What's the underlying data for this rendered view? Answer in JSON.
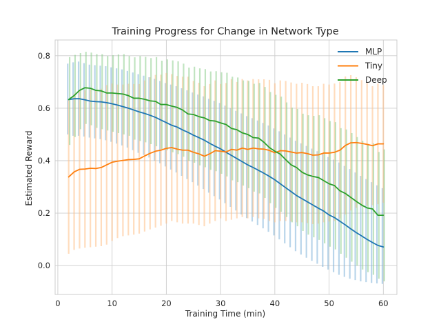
{
  "chart_data": {
    "type": "line",
    "title": "Training Progress for Change in Network Type",
    "xlabel": "Training Time (min)",
    "ylabel": "Estimated Reward",
    "xlim": [
      -0.5,
      62.5
    ],
    "ylim": [
      -0.11,
      0.86
    ],
    "xticks": [
      0,
      10,
      20,
      30,
      40,
      50,
      60
    ],
    "yticks": [
      0.0,
      0.2,
      0.4,
      0.6,
      0.8
    ],
    "grid": true,
    "legend_position": "top-right",
    "x": [
      2,
      3,
      4,
      5,
      6,
      7,
      8,
      9,
      10,
      11,
      12,
      13,
      14,
      15,
      16,
      17,
      18,
      19,
      20,
      21,
      22,
      23,
      24,
      25,
      26,
      27,
      28,
      29,
      30,
      31,
      32,
      33,
      34,
      35,
      36,
      37,
      38,
      39,
      40,
      41,
      42,
      43,
      44,
      45,
      46,
      47,
      48,
      49,
      50,
      51,
      52,
      53,
      54,
      55,
      56,
      57,
      58,
      59,
      60
    ],
    "series": [
      {
        "name": "MLP",
        "color": "#1f77b4",
        "band_color": "#7fb3d9",
        "values": [
          0.633,
          0.636,
          0.636,
          0.632,
          0.627,
          0.625,
          0.624,
          0.621,
          0.617,
          0.612,
          0.606,
          0.6,
          0.593,
          0.586,
          0.58,
          0.573,
          0.565,
          0.555,
          0.545,
          0.535,
          0.528,
          0.517,
          0.508,
          0.497,
          0.488,
          0.478,
          0.466,
          0.455,
          0.445,
          0.432,
          0.42,
          0.408,
          0.396,
          0.384,
          0.374,
          0.363,
          0.352,
          0.34,
          0.327,
          0.312,
          0.297,
          0.282,
          0.267,
          0.255,
          0.243,
          0.231,
          0.219,
          0.208,
          0.193,
          0.183,
          0.169,
          0.155,
          0.14,
          0.126,
          0.113,
          0.1,
          0.088,
          0.077,
          0.071
        ],
        "err_low": [
          0.5,
          0.495,
          0.495,
          0.492,
          0.488,
          0.485,
          0.482,
          0.478,
          0.472,
          0.465,
          0.458,
          0.45,
          0.44,
          0.43,
          0.422,
          0.412,
          0.4,
          0.39,
          0.378,
          0.366,
          0.355,
          0.342,
          0.33,
          0.318,
          0.305,
          0.292,
          0.278,
          0.265,
          0.252,
          0.238,
          0.224,
          0.21,
          0.195,
          0.181,
          0.168,
          0.155,
          0.142,
          0.129,
          0.115,
          0.1,
          0.085,
          0.07,
          0.055,
          0.042,
          0.03,
          0.018,
          0.007,
          -0.005,
          -0.015,
          -0.025,
          -0.035,
          -0.043,
          -0.05,
          -0.055,
          -0.06,
          -0.063,
          -0.066,
          -0.068,
          -0.07
        ],
        "err_high": [
          0.77,
          0.775,
          0.778,
          0.772,
          0.766,
          0.764,
          0.762,
          0.76,
          0.756,
          0.752,
          0.748,
          0.742,
          0.736,
          0.73,
          0.724,
          0.718,
          0.712,
          0.704,
          0.696,
          0.69,
          0.684,
          0.676,
          0.668,
          0.66,
          0.652,
          0.645,
          0.636,
          0.628,
          0.62,
          0.61,
          0.6,
          0.59,
          0.58,
          0.57,
          0.562,
          0.553,
          0.544,
          0.534,
          0.523,
          0.512,
          0.5,
          0.488,
          0.476,
          0.466,
          0.456,
          0.446,
          0.436,
          0.426,
          0.414,
          0.404,
          0.393,
          0.38,
          0.368,
          0.355,
          0.342,
          0.33,
          0.318,
          0.306,
          0.295
        ]
      },
      {
        "name": "Tiny",
        "color": "#ff7f0e",
        "band_color": "#ffbf87",
        "values": [
          0.338,
          0.357,
          0.367,
          0.368,
          0.371,
          0.37,
          0.374,
          0.384,
          0.394,
          0.398,
          0.401,
          0.404,
          0.405,
          0.407,
          0.418,
          0.428,
          0.436,
          0.44,
          0.447,
          0.45,
          0.444,
          0.44,
          0.44,
          0.432,
          0.426,
          0.417,
          0.426,
          0.438,
          0.436,
          0.433,
          0.443,
          0.44,
          0.448,
          0.443,
          0.448,
          0.445,
          0.444,
          0.439,
          0.43,
          0.438,
          0.437,
          0.433,
          0.429,
          0.431,
          0.427,
          0.421,
          0.422,
          0.429,
          0.429,
          0.432,
          0.44,
          0.458,
          0.468,
          0.469,
          0.466,
          0.462,
          0.457,
          0.464,
          0.464
        ],
        "err_low": [
          0.045,
          0.06,
          0.065,
          0.068,
          0.07,
          0.072,
          0.074,
          0.08,
          0.094,
          0.105,
          0.112,
          0.115,
          0.118,
          0.122,
          0.13,
          0.138,
          0.145,
          0.152,
          0.16,
          0.17,
          0.165,
          0.16,
          0.16,
          0.16,
          0.155,
          0.15,
          0.16,
          0.17,
          0.18,
          0.17,
          0.175,
          0.18,
          0.185,
          0.18,
          0.185,
          0.18,
          0.178,
          0.17,
          0.165,
          0.17,
          0.17,
          0.168,
          0.165,
          0.165,
          0.162,
          0.158,
          0.16,
          0.165,
          0.168,
          0.17,
          0.18,
          0.195,
          0.21,
          0.22,
          0.225,
          0.228,
          0.23,
          0.234,
          0.24
        ],
        "err_high": [
          0.63,
          0.655,
          0.67,
          0.668,
          0.672,
          0.668,
          0.674,
          0.688,
          0.694,
          0.69,
          0.69,
          0.693,
          0.692,
          0.692,
          0.706,
          0.718,
          0.727,
          0.728,
          0.734,
          0.73,
          0.723,
          0.72,
          0.72,
          0.704,
          0.697,
          0.684,
          0.692,
          0.706,
          0.692,
          0.696,
          0.711,
          0.7,
          0.711,
          0.706,
          0.711,
          0.71,
          0.71,
          0.708,
          0.695,
          0.706,
          0.704,
          0.698,
          0.693,
          0.697,
          0.692,
          0.684,
          0.684,
          0.693,
          0.69,
          0.694,
          0.7,
          0.721,
          0.726,
          0.718,
          0.707,
          0.696,
          0.684,
          0.694,
          0.688
        ]
      },
      {
        "name": "Deep",
        "color": "#2ca02c",
        "band_color": "#8dce8d",
        "values": [
          0.633,
          0.648,
          0.668,
          0.678,
          0.676,
          0.668,
          0.666,
          0.658,
          0.658,
          0.656,
          0.654,
          0.648,
          0.638,
          0.638,
          0.634,
          0.628,
          0.626,
          0.614,
          0.614,
          0.608,
          0.603,
          0.593,
          0.578,
          0.576,
          0.568,
          0.563,
          0.553,
          0.551,
          0.544,
          0.538,
          0.523,
          0.518,
          0.506,
          0.5,
          0.488,
          0.486,
          0.47,
          0.45,
          0.436,
          0.425,
          0.404,
          0.384,
          0.374,
          0.356,
          0.346,
          0.34,
          0.336,
          0.324,
          0.312,
          0.305,
          0.285,
          0.275,
          0.26,
          0.245,
          0.231,
          0.22,
          0.216,
          0.192,
          0.192
        ],
        "err_low": [
          0.46,
          0.49,
          0.52,
          0.54,
          0.535,
          0.525,
          0.52,
          0.515,
          0.51,
          0.505,
          0.5,
          0.495,
          0.48,
          0.475,
          0.47,
          0.463,
          0.455,
          0.445,
          0.44,
          0.432,
          0.425,
          0.415,
          0.4,
          0.392,
          0.382,
          0.375,
          0.365,
          0.36,
          0.35,
          0.34,
          0.325,
          0.318,
          0.305,
          0.295,
          0.282,
          0.275,
          0.258,
          0.238,
          0.22,
          0.205,
          0.185,
          0.165,
          0.15,
          0.132,
          0.118,
          0.108,
          0.098,
          0.085,
          0.072,
          0.062,
          0.045,
          0.03,
          0.015,
          0.0,
          -0.015,
          -0.025,
          -0.035,
          -0.05,
          -0.06
        ],
        "err_high": [
          0.795,
          0.803,
          0.81,
          0.815,
          0.812,
          0.806,
          0.806,
          0.799,
          0.802,
          0.805,
          0.806,
          0.799,
          0.794,
          0.799,
          0.796,
          0.791,
          0.795,
          0.781,
          0.786,
          0.782,
          0.779,
          0.77,
          0.755,
          0.758,
          0.752,
          0.749,
          0.74,
          0.741,
          0.737,
          0.735,
          0.72,
          0.717,
          0.706,
          0.704,
          0.693,
          0.696,
          0.681,
          0.662,
          0.651,
          0.644,
          0.622,
          0.602,
          0.597,
          0.579,
          0.573,
          0.571,
          0.573,
          0.562,
          0.551,
          0.547,
          0.524,
          0.519,
          0.505,
          0.49,
          0.476,
          0.464,
          0.466,
          0.433,
          0.443
        ]
      }
    ]
  }
}
